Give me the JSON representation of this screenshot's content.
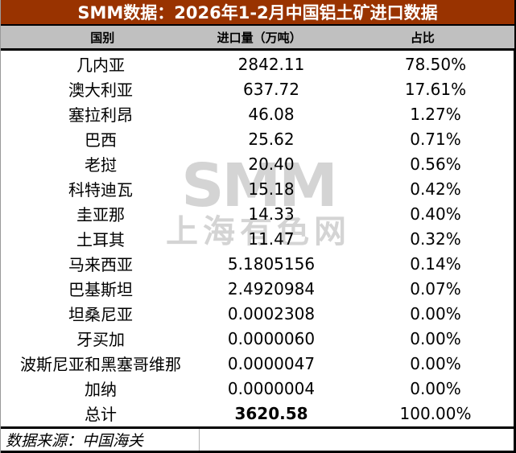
{
  "title": "SMM数据：2026年1-2月中国铝土矿进口数据",
  "colors": {
    "title_bg": "#993300",
    "title_text": "#ffffff",
    "header_bg": "#c0c0c0",
    "watermark": "#d4d4d4"
  },
  "table": {
    "headers": {
      "country": "国别",
      "quantity": "进口量（万吨）",
      "share": "占比"
    },
    "rows": [
      {
        "country": "几内亚",
        "quantity": "2842.11",
        "share": "78.50%"
      },
      {
        "country": "澳大利亚",
        "quantity": "637.72",
        "share": "17.61%"
      },
      {
        "country": "塞拉利昂",
        "quantity": "46.08",
        "share": "1.27%"
      },
      {
        "country": "巴西",
        "quantity": "25.62",
        "share": "0.71%"
      },
      {
        "country": "老挝",
        "quantity": "20.40",
        "share": "0.56%"
      },
      {
        "country": "科特迪瓦",
        "quantity": "15.18",
        "share": "0.42%"
      },
      {
        "country": "圭亚那",
        "quantity": "14.33",
        "share": "0.40%"
      },
      {
        "country": "土耳其",
        "quantity": "11.47",
        "share": "0.32%"
      },
      {
        "country": "马来西亚",
        "quantity": "5.1805156",
        "share": "0.14%"
      },
      {
        "country": "巴基斯坦",
        "quantity": "2.4920984",
        "share": "0.07%"
      },
      {
        "country": "坦桑尼亚",
        "quantity": "0.0002308",
        "share": "0.00%"
      },
      {
        "country": "牙买加",
        "quantity": "0.0000060",
        "share": "0.00%"
      },
      {
        "country": "波斯尼亚和黑塞哥维那",
        "quantity": "0.0000047",
        "share": "0.00%"
      },
      {
        "country": "加纳",
        "quantity": "0.0000004",
        "share": "0.00%"
      }
    ],
    "total": {
      "country": "总计",
      "quantity": "3620.58",
      "share": "100.00%"
    }
  },
  "watermark": {
    "logo": "SMM",
    "text": "上海有色网"
  },
  "footer": {
    "source": "数据来源：中国海关"
  }
}
